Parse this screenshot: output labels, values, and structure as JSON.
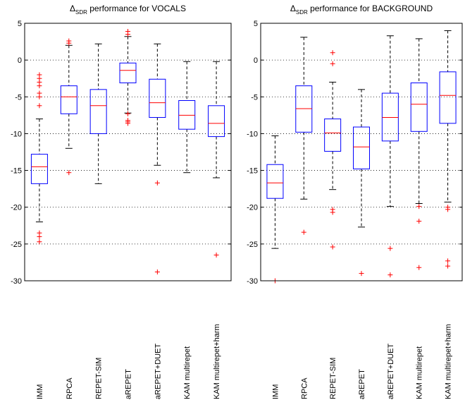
{
  "chart_data": [
    {
      "type": "box",
      "title": {
        "delta": "Δ",
        "sub": "SDR",
        "rest": " performance for VOCALS"
      },
      "ylim": [
        -30,
        5
      ],
      "yticks": [
        5,
        0,
        -5,
        -10,
        -15,
        -20,
        -25,
        -30
      ],
      "ytick_labels": [
        "5",
        "0",
        "-5",
        "-10",
        "-15",
        "-20",
        "-25",
        "-30"
      ],
      "grid": "horizontal-dotted",
      "categories": [
        "IMM",
        "RPCA",
        "REPET-SIM",
        "aREPET",
        "aREPET+DUET",
        "KAM multirepet",
        "KAM multirepet+harm"
      ],
      "boxes": [
        {
          "whisker_high": -8,
          "q3": -12.8,
          "median": -14.5,
          "q1": -16.8,
          "whisker_low": -22,
          "outliers": [
            -2,
            -2.5,
            -3,
            -3.5,
            -4.5,
            -5,
            -6.2,
            -23.5,
            -24,
            -24.7
          ]
        },
        {
          "whisker_high": 2,
          "q3": -3.5,
          "median": -5,
          "q1": -7.3,
          "whisker_low": -12,
          "outliers": [
            2.3,
            2.6,
            -15.3
          ]
        },
        {
          "whisker_high": 2.2,
          "q3": -4,
          "median": -6.2,
          "q1": -10,
          "whisker_low": -16.8,
          "outliers": []
        },
        {
          "whisker_high": 3.2,
          "q3": -0.4,
          "median": -1.4,
          "q1": -3.1,
          "whisker_low": -7.2,
          "outliers": [
            3.9,
            3.5,
            -8.2,
            -8.4,
            -8.6,
            -7.3
          ]
        },
        {
          "whisker_high": 2.2,
          "q3": -2.6,
          "median": -5.8,
          "q1": -7.8,
          "whisker_low": -14.3,
          "outliers": [
            -16.7,
            -28.8
          ]
        },
        {
          "whisker_high": -0.2,
          "q3": -5.5,
          "median": -7.5,
          "q1": -9.4,
          "whisker_low": -15.3,
          "outliers": []
        },
        {
          "whisker_high": -0.2,
          "q3": -6.2,
          "median": -8.6,
          "q1": -10.4,
          "whisker_low": -16,
          "outliers": [
            -26.5
          ]
        }
      ]
    },
    {
      "type": "box",
      "title": {
        "delta": "Δ",
        "sub": "SDR",
        "rest": " performance for BACKGROUND"
      },
      "ylim": [
        -30,
        5
      ],
      "yticks": [
        5,
        0,
        -5,
        -10,
        -15,
        -20,
        -25,
        -30
      ],
      "ytick_labels": [
        "5",
        "0",
        "-5",
        "-10",
        "-15",
        "-20",
        "-25",
        "-30"
      ],
      "grid": "horizontal-dotted",
      "categories": [
        "IMM",
        "RPCA",
        "REPET-SIM",
        "aREPET",
        "aREPET+DUET",
        "KAM multirepet",
        "KAM multirepet+harm"
      ],
      "boxes": [
        {
          "whisker_high": -10.3,
          "q3": -14.2,
          "median": -16.7,
          "q1": -18.8,
          "whisker_low": -25.6,
          "outliers": [
            -30
          ]
        },
        {
          "whisker_high": 3.1,
          "q3": -3.5,
          "median": -6.6,
          "q1": -9.8,
          "whisker_low": -18.9,
          "outliers": [
            -23.4
          ]
        },
        {
          "whisker_high": -3,
          "q3": -8,
          "median": -9.9,
          "q1": -12.4,
          "whisker_low": -17.6,
          "outliers": [
            1,
            -0.5,
            -20.3,
            -20.7,
            -25.4
          ]
        },
        {
          "whisker_high": -4,
          "q3": -9.1,
          "median": -11.8,
          "q1": -14.8,
          "whisker_low": -22.7,
          "outliers": [
            -29
          ]
        },
        {
          "whisker_high": 3.3,
          "q3": -4.5,
          "median": -7.8,
          "q1": -11,
          "whisker_low": -19.9,
          "outliers": [
            -25.6,
            -29.2
          ]
        },
        {
          "whisker_high": 2.9,
          "q3": -3.1,
          "median": -6,
          "q1": -9.7,
          "whisker_low": -19.5,
          "outliers": [
            -19.9,
            -21.9,
            -28.2
          ]
        },
        {
          "whisker_high": 4,
          "q3": -1.6,
          "median": -4.8,
          "q1": -8.6,
          "whisker_low": -19.3,
          "outliers": [
            -20,
            -20.3,
            -27.3,
            -28
          ]
        }
      ]
    }
  ],
  "colors": {
    "box": "#0000ff",
    "median": "#ff0000",
    "whisker": "#000000",
    "outlier": "#ff0000",
    "grid": "#000000",
    "axes": "#000000"
  }
}
